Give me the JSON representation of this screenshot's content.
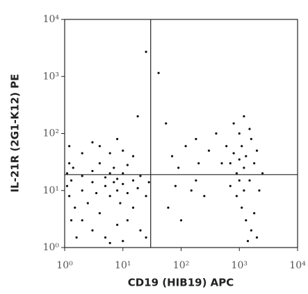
{
  "chart_data": {
    "type": "scatter",
    "xlabel": "CD19 (HIB19) APC",
    "ylabel": "IL-21R (2G1-K12) PE",
    "log_x": true,
    "log_y": true,
    "xlim": [
      1,
      10000
    ],
    "ylim": [
      1,
      10000
    ],
    "xticks": [
      {
        "value": 1,
        "label": "10⁰"
      },
      {
        "value": 10,
        "label": "10¹"
      },
      {
        "value": 100,
        "label": "10²"
      },
      {
        "value": 1000,
        "label": "10³"
      },
      {
        "value": 10000,
        "label": "10⁴"
      }
    ],
    "yticks": [
      {
        "value": 1,
        "label": "10⁰"
      },
      {
        "value": 10,
        "label": "10¹"
      },
      {
        "value": 100,
        "label": "10²"
      },
      {
        "value": 1000,
        "label": "10³"
      },
      {
        "value": 10000,
        "label": "10⁴"
      }
    ],
    "gates": {
      "x": 30,
      "y": 19
    },
    "color": "#111111",
    "x": [
      1.1,
      1.2,
      1.3,
      1.1,
      1.2,
      1.5,
      1.4,
      2,
      2,
      2.5,
      3,
      3,
      3.5,
      4,
      4,
      5,
      5,
      6,
      6,
      7,
      7,
      8,
      8,
      9,
      10,
      10,
      12,
      12,
      15,
      15,
      18,
      20,
      25,
      28,
      2,
      3,
      5,
      8,
      12,
      1.3,
      1.6,
      6,
      4,
      10,
      3,
      8,
      15,
      2,
      1.2,
      6,
      10,
      20,
      25,
      25,
      41,
      18,
      55,
      70,
      90,
      120,
      150,
      200,
      250,
      60,
      80,
      100,
      180,
      300,
      400,
      180,
      700,
      800,
      900,
      1000,
      1100,
      1200,
      1300,
      1500,
      1600,
      1800,
      2000,
      900,
      1100,
      1300,
      1600,
      2000,
      700,
      600,
      800,
      1200,
      1500,
      2500,
      2200,
      500,
      1000,
      1400,
      1800,
      1000,
      1200
    ],
    "values": [
      12,
      8,
      15,
      20,
      30,
      5,
      25,
      10,
      18,
      6,
      14,
      22,
      9,
      30,
      4,
      12,
      17,
      8,
      20,
      14,
      25,
      10,
      16,
      6,
      13,
      20,
      9,
      28,
      15,
      5,
      11,
      18,
      8,
      14,
      3,
      2,
      1.5,
      2.5,
      3,
      3,
      1.5,
      45,
      60,
      50,
      70,
      80,
      40,
      45,
      60,
      1.2,
      1.3,
      2,
      1.5,
      2700,
      1150,
      200,
      150,
      40,
      25,
      60,
      10,
      30,
      8,
      5,
      12,
      3,
      15,
      50,
      100,
      80,
      30,
      45,
      20,
      35,
      60,
      25,
      40,
      15,
      80,
      30,
      50,
      8,
      5,
      3,
      2,
      1.5,
      12,
      60,
      150,
      200,
      120,
      20,
      10,
      30,
      100,
      1.3,
      4,
      15,
      10
    ]
  }
}
